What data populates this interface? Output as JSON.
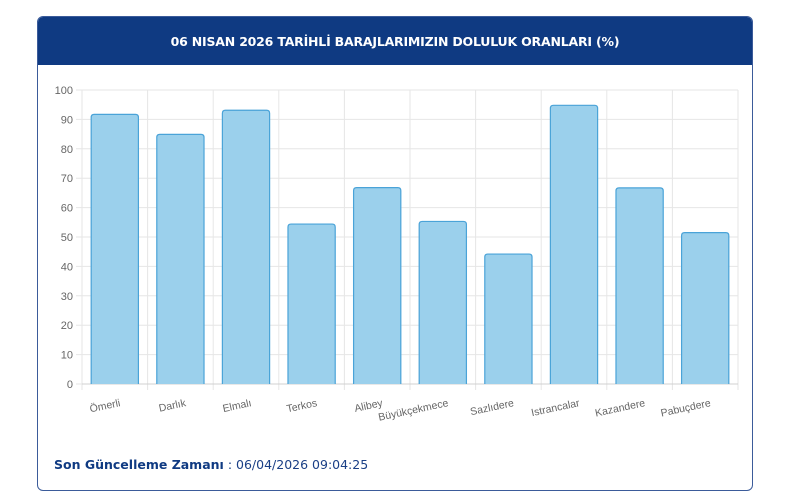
{
  "header": {
    "title": "06 NISAN 2026 TARİHLİ BARAJLARIMIZIN DOLULUK ORANLARI (%)"
  },
  "footer": {
    "label": "Son Güncelleme Zamanı",
    "separator": " : ",
    "value": "06/04/2026 09:04:25"
  },
  "colors": {
    "header_bg": "#0f3a82",
    "bar_fill": "#9bd0ec",
    "bar_stroke": "#4aa3d8",
    "grid": "#e6e6e6",
    "axis_text": "#666666"
  },
  "chart_data": {
    "type": "bar",
    "title": "06 NISAN 2026 TARİHLİ BARAJLARIMIZIN DOLULUK ORANLARI (%)",
    "xlabel": "",
    "ylabel": "",
    "categories": [
      "Ömerli",
      "Darlık",
      "Elmalı",
      "Terkos",
      "Alibey",
      "Büyükçekmece",
      "Sazlıdere",
      "Istrancalar",
      "Kazandere",
      "Pabuçdere"
    ],
    "values": [
      91.7,
      84.9,
      93.1,
      54.4,
      66.8,
      55.3,
      44.2,
      94.8,
      66.7,
      51.5
    ],
    "ylim": [
      0,
      100
    ],
    "yticks": [
      0,
      10,
      20,
      30,
      40,
      50,
      60,
      70,
      80,
      90,
      100
    ],
    "grid": true,
    "legend": null
  }
}
